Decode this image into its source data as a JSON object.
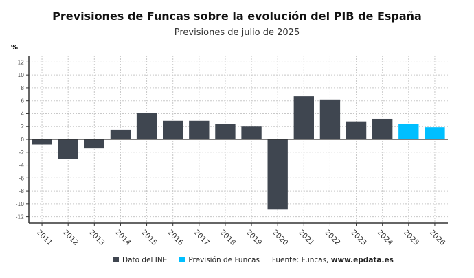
{
  "chart_data": {
    "type": "bar",
    "title": "Previsiones de Funcas sobre la evolución del PIB de España",
    "subtitle": "Previsiones de julio de 2025",
    "ylabel": "%",
    "xlabel": "",
    "ylim": [
      -13,
      13
    ],
    "yticks": [
      12,
      10,
      8,
      6,
      4,
      2,
      0,
      -2,
      -4,
      -6,
      -8,
      -10,
      -12
    ],
    "grid": true,
    "categories": [
      "2011",
      "2012",
      "2013",
      "2014",
      "2015",
      "2016",
      "2017",
      "2018",
      "2019",
      "2020",
      "2021",
      "2022",
      "2023",
      "2024",
      "2025",
      "2026"
    ],
    "values": [
      -0.8,
      -3.0,
      -1.4,
      1.5,
      4.1,
      2.9,
      2.9,
      2.4,
      2.0,
      -10.9,
      6.7,
      6.2,
      2.7,
      3.2,
      2.4,
      1.9
    ],
    "series_by_point": [
      "ine",
      "ine",
      "ine",
      "ine",
      "ine",
      "ine",
      "ine",
      "ine",
      "ine",
      "ine",
      "ine",
      "ine",
      "ine",
      "ine",
      "funcas",
      "funcas"
    ],
    "legend_position": "bottom",
    "legend": [
      {
        "key": "ine",
        "name": "Dato del INE",
        "color": "#3f4650"
      },
      {
        "key": "funcas",
        "name": "Previsión de Funcas",
        "color": "#00bfff"
      }
    ],
    "source_label": "Fuente: Funcas,",
    "source_site": "www.epdata.es"
  }
}
